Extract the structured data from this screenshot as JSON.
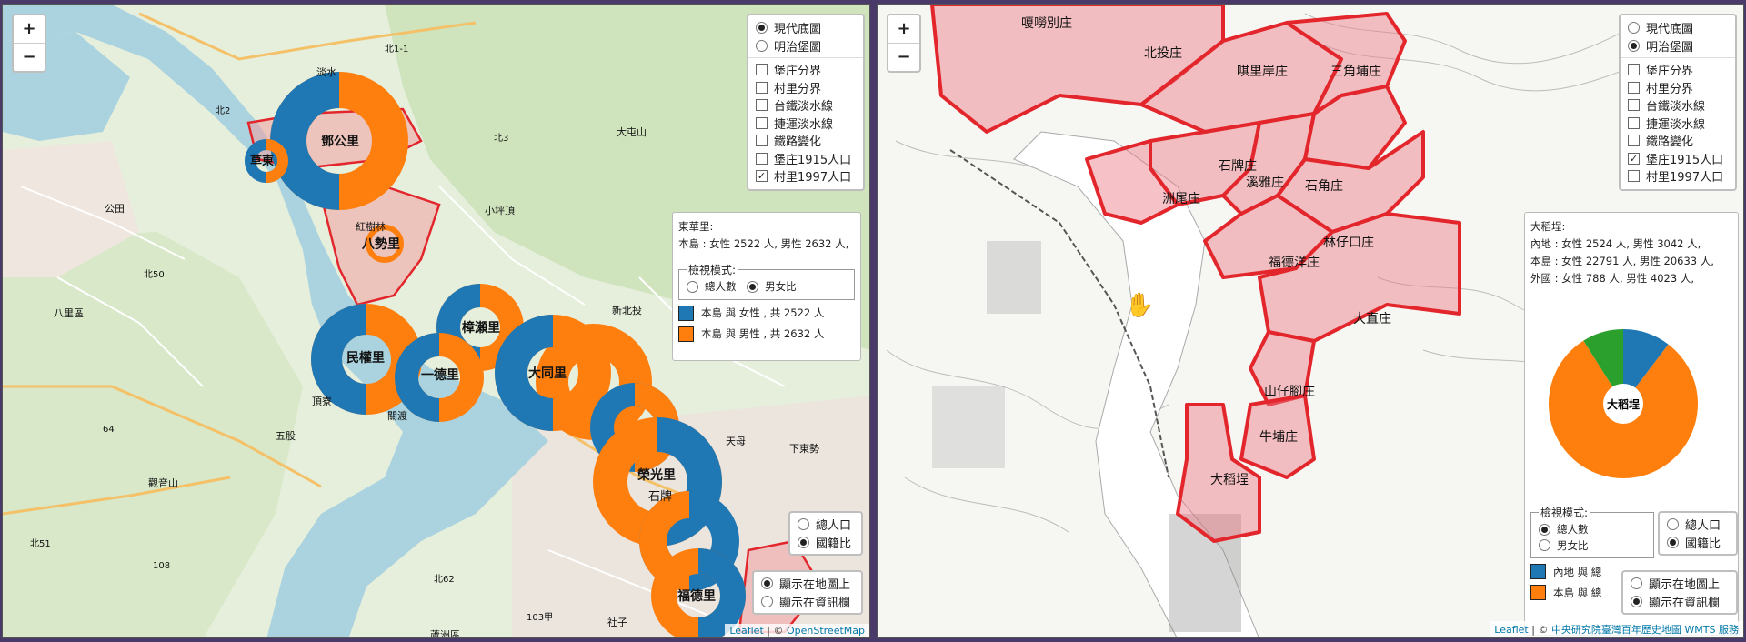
{
  "left": {
    "zoom": {
      "in": "+",
      "out": "−"
    },
    "basemap": {
      "options": [
        "現代底圖",
        "明治堡圖"
      ],
      "selected": 0
    },
    "layers": [
      {
        "label": "堡庄分界",
        "checked": false
      },
      {
        "label": "村里分界",
        "checked": false
      },
      {
        "label": "台鐵淡水線",
        "checked": false
      },
      {
        "label": "捷運淡水線",
        "checked": false
      },
      {
        "label": "鐵路變化",
        "checked": false
      },
      {
        "label": "堡庄1915人口",
        "checked": false
      },
      {
        "label": "村里1997人口",
        "checked": true
      }
    ],
    "info": {
      "title": "東華里:",
      "line": "本島 : 女性 2522 人, 男性 2632 人,",
      "mode_legend": "檢視模式:",
      "mode_options": [
        "總人數",
        "男女比"
      ],
      "mode_selected": 1,
      "legend": [
        {
          "label": "本島 與 女性 , 共 2522 人",
          "color": "#1f77b4"
        },
        {
          "label": "本島 與 男性 , 共 2632 人",
          "color": "#ff7f0e"
        }
      ]
    },
    "pop_toggle": {
      "options": [
        "總人口",
        "國籍比"
      ],
      "selected": 1
    },
    "display_toggle": {
      "options": [
        "顯示在地圖上",
        "顯示在資訊欄"
      ],
      "selected": 0
    },
    "attribution": {
      "leaflet": "Leaflet",
      "sep": " | © ",
      "source": "OpenStreetMap"
    },
    "map_labels": [
      {
        "text": "鄧公里",
        "kind": "village"
      },
      {
        "text": "草東",
        "kind": "village"
      },
      {
        "text": "八勢里",
        "kind": "village"
      },
      {
        "text": "民權里",
        "kind": "village"
      },
      {
        "text": "一德里",
        "kind": "village"
      },
      {
        "text": "樟瀬里",
        "kind": "village"
      },
      {
        "text": "大同里",
        "kind": "village"
      },
      {
        "text": "榮光里",
        "kind": "village"
      },
      {
        "text": "福德里",
        "kind": "village"
      },
      {
        "text": "淡水",
        "kind": "place"
      },
      {
        "text": "八里區",
        "kind": "place"
      },
      {
        "text": "公田",
        "kind": "place"
      },
      {
        "text": "小坪頂",
        "kind": "place"
      },
      {
        "text": "新北投",
        "kind": "place"
      },
      {
        "text": "頂寮",
        "kind": "place"
      },
      {
        "text": "五股",
        "kind": "place"
      },
      {
        "text": "蘆洲區",
        "kind": "place"
      },
      {
        "text": "社子",
        "kind": "place"
      },
      {
        "text": "石牌",
        "kind": "place"
      },
      {
        "text": "天母",
        "kind": "place"
      },
      {
        "text": "下東勢",
        "kind": "place"
      },
      {
        "text": "紅樹林",
        "kind": "place"
      },
      {
        "text": "關渡",
        "kind": "place"
      },
      {
        "text": "觀音山",
        "kind": "place"
      },
      {
        "text": "大屯山",
        "kind": "place"
      },
      {
        "text": "北1-1",
        "kind": "road"
      },
      {
        "text": "北2",
        "kind": "road"
      },
      {
        "text": "北3",
        "kind": "road"
      },
      {
        "text": "北50",
        "kind": "road"
      },
      {
        "text": "北51",
        "kind": "road"
      },
      {
        "text": "北62",
        "kind": "road"
      },
      {
        "text": "64",
        "kind": "road"
      },
      {
        "text": "108",
        "kind": "road"
      },
      {
        "text": "103甲",
        "kind": "road"
      }
    ]
  },
  "right": {
    "zoom": {
      "in": "+",
      "out": "−"
    },
    "basemap": {
      "options": [
        "現代底圖",
        "明治堡圖"
      ],
      "selected": 1
    },
    "layers": [
      {
        "label": "堡庄分界",
        "checked": false
      },
      {
        "label": "村里分界",
        "checked": false
      },
      {
        "label": "台鐵淡水線",
        "checked": false
      },
      {
        "label": "捷運淡水線",
        "checked": false
      },
      {
        "label": "鐵路變化",
        "checked": false
      },
      {
        "label": "堡庄1915人口",
        "checked": true
      },
      {
        "label": "村里1997人口",
        "checked": false
      }
    ],
    "info": {
      "title": "大稻埕:",
      "lines": [
        "內地 : 女性 2524 人, 男性 3042 人,",
        "本島 : 女性 22791 人, 男性 20633 人,",
        "外國 : 女性 788 人, 男性 4023 人,"
      ],
      "pie_center": "大稻埕",
      "mode_legend": "檢視模式:",
      "mode_options": [
        "總人數",
        "男女比"
      ],
      "mode_selected": 0,
      "legend": [
        {
          "label": "內地 與 總",
          "color": "#1f77b4"
        },
        {
          "label": "本島 與 總",
          "color": "#ff7f0e"
        }
      ]
    },
    "pie": [
      {
        "name": "內地",
        "value": 5566,
        "color": "#1f77b4"
      },
      {
        "name": "本島",
        "value": 43424,
        "color": "#ff7f0e"
      },
      {
        "name": "外國",
        "value": 4811,
        "color": "#2ca02c"
      }
    ],
    "pop_toggle": {
      "options": [
        "總人口",
        "國籍比"
      ],
      "selected": 1
    },
    "display_toggle": {
      "options": [
        "顯示在地圖上",
        "顯示在資訊欄"
      ],
      "selected": 1
    },
    "attribution": {
      "leaflet": "Leaflet",
      "sep": " | © ",
      "source": "中央研究院臺灣百年歷史地圖 WMTS 服務"
    },
    "map_labels": [
      {
        "text": "北投庄"
      },
      {
        "text": "嗄嘮別庄"
      },
      {
        "text": "唭里岸庄"
      },
      {
        "text": "三角埔庄"
      },
      {
        "text": "石牌庄"
      },
      {
        "text": "洲尾庄"
      },
      {
        "text": "溪雅庄"
      },
      {
        "text": "石角庄"
      },
      {
        "text": "林仔口庄"
      },
      {
        "text": "福德洋庄"
      },
      {
        "text": "大直庄"
      },
      {
        "text": "山仔腳庄"
      },
      {
        "text": "牛埔庄"
      },
      {
        "text": "大稻埕"
      }
    ]
  }
}
